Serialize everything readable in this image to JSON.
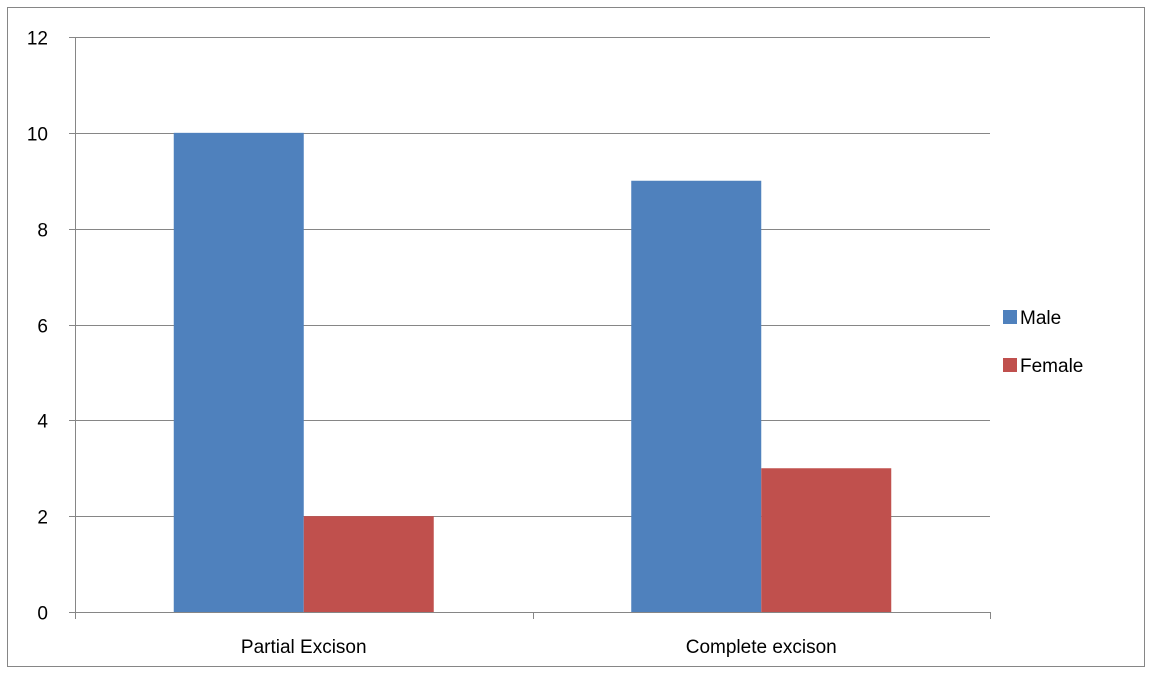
{
  "chart_data": {
    "type": "bar",
    "title": "",
    "xlabel": "",
    "ylabel": "",
    "categories": [
      "Partial Excison",
      "Complete excison"
    ],
    "series": [
      {
        "name": "Male",
        "values": [
          10,
          9
        ],
        "color": "#4F81BD"
      },
      {
        "name": "Female",
        "values": [
          2,
          3
        ],
        "color": "#C0504D"
      }
    ],
    "ylim": [
      0,
      12
    ],
    "yticks": [
      0,
      2,
      4,
      6,
      8,
      10,
      12
    ],
    "grid": true,
    "legend_position": "right",
    "colors": {
      "gridline": "#868686",
      "axis": "#868686",
      "border": "#868686"
    }
  }
}
